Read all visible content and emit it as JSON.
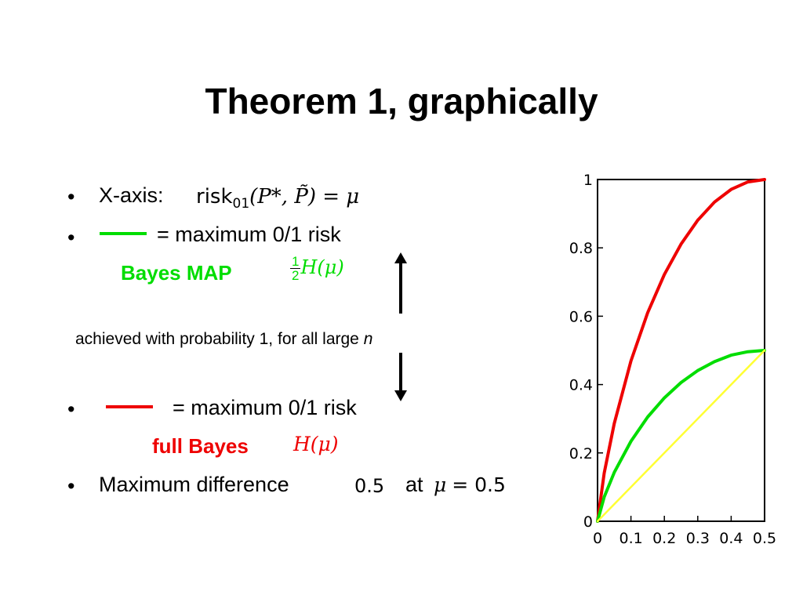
{
  "slide": {
    "title": "Theorem 1, graphically",
    "bullet1_label": "X-axis:",
    "bullet1_math_risk": "risk",
    "bullet1_math_sub": "01",
    "bullet1_math_rest": "(P*, P̃) = μ",
    "bullet2_text": "= maximum 0/1 risk",
    "bayes_map_label": "Bayes MAP",
    "bayes_map_frac_num": "1",
    "bayes_map_frac_den": "2",
    "bayes_map_formula": "H(μ)",
    "achieved_text": "achieved with probability 1, for all large",
    "achieved_var": "n",
    "bullet3_text": "= maximum 0/1 risk",
    "full_bayes_label": "full Bayes",
    "full_bayes_formula": "H(μ)",
    "bullet4_text": "Maximum difference",
    "bullet4_value": "0.5",
    "bullet4_at": "at",
    "bullet4_eq_var": "μ",
    "bullet4_eq_rest": "= 0.5",
    "bullet_char": "•",
    "colors": {
      "map_green": "#00dd00",
      "full_bayes_red": "#ee0000",
      "diagonal_yellow": "#ffff33",
      "arrow": "#000000"
    }
  },
  "chart_data": {
    "type": "line",
    "x_ticks": [
      "0",
      "0.1",
      "0.2",
      "0.3",
      "0.4",
      "0.5"
    ],
    "y_ticks": [
      "0",
      "0.2",
      "0.4",
      "0.6",
      "0.8",
      "1"
    ],
    "xlim": [
      0,
      0.5
    ],
    "ylim": [
      0,
      1
    ],
    "grid": false,
    "series": [
      {
        "color": "#ee0000",
        "x": [
          0,
          0.02,
          0.05,
          0.1,
          0.15,
          0.2,
          0.25,
          0.3,
          0.35,
          0.4,
          0.45,
          0.5
        ],
        "y": [
          0,
          0.141,
          0.286,
          0.469,
          0.61,
          0.722,
          0.811,
          0.881,
          0.934,
          0.971,
          0.993,
          1.0
        ]
      },
      {
        "color": "#00dd00",
        "x": [
          0,
          0.02,
          0.05,
          0.1,
          0.15,
          0.2,
          0.25,
          0.3,
          0.35,
          0.4,
          0.45,
          0.5
        ],
        "y": [
          0,
          0.071,
          0.143,
          0.234,
          0.305,
          0.361,
          0.406,
          0.441,
          0.467,
          0.486,
          0.496,
          0.5
        ]
      },
      {
        "color": "#ffff33",
        "x": [
          0,
          0.5
        ],
        "y": [
          0,
          0.5
        ]
      }
    ]
  }
}
